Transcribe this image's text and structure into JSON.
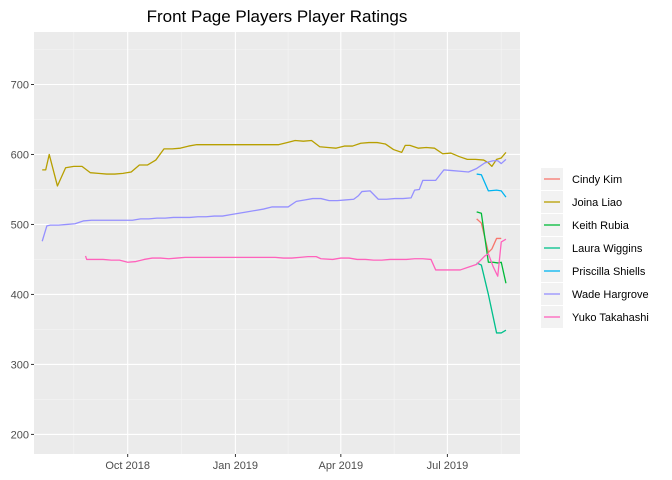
{
  "chart_data": {
    "type": "line",
    "title": "Front Page Players Player Ratings",
    "xlabel": "",
    "ylabel": "",
    "ylim": [
      172,
      775
    ],
    "xlim": [
      "2018-07-13",
      "2019-09-01"
    ],
    "y_ticks": [
      200,
      300,
      400,
      500,
      600,
      700
    ],
    "x_ticks": [
      {
        "date": "2018-10-01",
        "label": "Oct 2018"
      },
      {
        "date": "2019-01-01",
        "label": "Jan 2019"
      },
      {
        "date": "2019-04-01",
        "label": "Apr 2019"
      },
      {
        "date": "2019-07-01",
        "label": "Jul 2019"
      }
    ],
    "grid": true,
    "legend_position": "right",
    "colors": {
      "panel_bg": "#ebebeb",
      "grid_major": "#ffffff",
      "grid_minor": "#f5f5f5",
      "tick_text": "#4d4d4d"
    },
    "series": [
      {
        "name": "Cindy Kim",
        "color": "#F8766D",
        "points": [
          [
            "2019-07-26",
            508
          ],
          [
            "2019-07-30",
            502
          ],
          [
            "2019-08-05",
            460
          ],
          [
            "2019-08-08",
            465
          ],
          [
            "2019-08-12",
            480
          ],
          [
            "2019-08-16",
            480
          ]
        ]
      },
      {
        "name": "Joina Liao",
        "color": "#B79F00",
        "points": [
          [
            "2018-07-20",
            578
          ],
          [
            "2018-07-23",
            578
          ],
          [
            "2018-07-26",
            600
          ],
          [
            "2018-08-02",
            555
          ],
          [
            "2018-08-09",
            581
          ],
          [
            "2018-08-16",
            583
          ],
          [
            "2018-08-23",
            583
          ],
          [
            "2018-08-30",
            574
          ],
          [
            "2018-09-06",
            573
          ],
          [
            "2018-09-13",
            572
          ],
          [
            "2018-09-20",
            572
          ],
          [
            "2018-09-27",
            573
          ],
          [
            "2018-10-04",
            575
          ],
          [
            "2018-10-11",
            585
          ],
          [
            "2018-10-18",
            585
          ],
          [
            "2018-10-25",
            592
          ],
          [
            "2018-11-01",
            608
          ],
          [
            "2018-11-08",
            608
          ],
          [
            "2018-11-15",
            609
          ],
          [
            "2018-11-22",
            612
          ],
          [
            "2018-11-29",
            614
          ],
          [
            "2018-12-06",
            614
          ],
          [
            "2018-12-13",
            614
          ],
          [
            "2018-12-27",
            614
          ],
          [
            "2019-01-10",
            614
          ],
          [
            "2019-01-24",
            614
          ],
          [
            "2019-02-07",
            614
          ],
          [
            "2019-02-14",
            617
          ],
          [
            "2019-02-21",
            620
          ],
          [
            "2019-02-28",
            619
          ],
          [
            "2019-03-07",
            620
          ],
          [
            "2019-03-14",
            611
          ],
          [
            "2019-03-21",
            610
          ],
          [
            "2019-03-28",
            609
          ],
          [
            "2019-04-04",
            612
          ],
          [
            "2019-04-11",
            612
          ],
          [
            "2019-04-18",
            616
          ],
          [
            "2019-04-25",
            617
          ],
          [
            "2019-05-02",
            617
          ],
          [
            "2019-05-09",
            615
          ],
          [
            "2019-05-16",
            607
          ],
          [
            "2019-05-23",
            603
          ],
          [
            "2019-05-26",
            613
          ],
          [
            "2019-05-30",
            613
          ],
          [
            "2019-06-06",
            609
          ],
          [
            "2019-06-13",
            610
          ],
          [
            "2019-06-20",
            609
          ],
          [
            "2019-06-27",
            601
          ],
          [
            "2019-07-04",
            602
          ],
          [
            "2019-07-11",
            597
          ],
          [
            "2019-07-18",
            593
          ],
          [
            "2019-07-25",
            593
          ],
          [
            "2019-08-01",
            592
          ],
          [
            "2019-08-05",
            588
          ],
          [
            "2019-08-08",
            583
          ],
          [
            "2019-08-12",
            593
          ],
          [
            "2019-08-16",
            595
          ],
          [
            "2019-08-20",
            603
          ]
        ]
      },
      {
        "name": "Keith Rubia",
        "color": "#00BA38",
        "points": [
          [
            "2019-07-26",
            518
          ],
          [
            "2019-07-30",
            516
          ],
          [
            "2019-08-05",
            446
          ],
          [
            "2019-08-09",
            446
          ],
          [
            "2019-08-13",
            445
          ],
          [
            "2019-08-16",
            446
          ],
          [
            "2019-08-20",
            416
          ]
        ]
      },
      {
        "name": "Laura Wiggins",
        "color": "#00C08B",
        "points": [
          [
            "2019-07-26",
            445
          ],
          [
            "2019-07-30",
            442
          ],
          [
            "2019-08-05",
            400
          ],
          [
            "2019-08-12",
            345
          ],
          [
            "2019-08-16",
            345
          ],
          [
            "2019-08-20",
            349
          ]
        ]
      },
      {
        "name": "Priscilla Shiells",
        "color": "#00B4F0",
        "points": [
          [
            "2019-07-26",
            572
          ],
          [
            "2019-07-30",
            571
          ],
          [
            "2019-08-05",
            548
          ],
          [
            "2019-08-12",
            549
          ],
          [
            "2019-08-16",
            548
          ],
          [
            "2019-08-20",
            539
          ]
        ]
      },
      {
        "name": "Wade Hargrove",
        "color": "#9590FF",
        "points": [
          [
            "2018-07-20",
            476
          ],
          [
            "2018-07-24",
            498
          ],
          [
            "2018-07-27",
            499
          ],
          [
            "2018-08-03",
            499
          ],
          [
            "2018-08-10",
            500
          ],
          [
            "2018-08-17",
            501
          ],
          [
            "2018-08-24",
            505
          ],
          [
            "2018-08-31",
            506
          ],
          [
            "2018-09-07",
            506
          ],
          [
            "2018-09-14",
            506
          ],
          [
            "2018-09-21",
            506
          ],
          [
            "2018-09-28",
            506
          ],
          [
            "2018-10-05",
            506
          ],
          [
            "2018-10-12",
            508
          ],
          [
            "2018-10-19",
            508
          ],
          [
            "2018-10-26",
            509
          ],
          [
            "2018-11-02",
            509
          ],
          [
            "2018-11-09",
            510
          ],
          [
            "2018-11-16",
            510
          ],
          [
            "2018-11-23",
            510
          ],
          [
            "2018-11-30",
            511
          ],
          [
            "2018-12-07",
            511
          ],
          [
            "2018-12-14",
            512
          ],
          [
            "2018-12-21",
            512
          ],
          [
            "2018-12-28",
            514
          ],
          [
            "2019-01-04",
            516
          ],
          [
            "2019-01-11",
            518
          ],
          [
            "2019-01-18",
            520
          ],
          [
            "2019-01-25",
            522
          ],
          [
            "2019-02-01",
            525
          ],
          [
            "2019-02-08",
            525
          ],
          [
            "2019-02-15",
            525
          ],
          [
            "2019-02-22",
            533
          ],
          [
            "2019-03-01",
            535
          ],
          [
            "2019-03-08",
            537
          ],
          [
            "2019-03-15",
            537
          ],
          [
            "2019-03-22",
            534
          ],
          [
            "2019-03-29",
            534
          ],
          [
            "2019-04-05",
            535
          ],
          [
            "2019-04-12",
            536
          ],
          [
            "2019-04-16",
            541
          ],
          [
            "2019-04-19",
            547
          ],
          [
            "2019-04-26",
            548
          ],
          [
            "2019-05-03",
            536
          ],
          [
            "2019-05-10",
            536
          ],
          [
            "2019-05-17",
            537
          ],
          [
            "2019-05-24",
            537
          ],
          [
            "2019-05-31",
            538
          ],
          [
            "2019-06-03",
            549
          ],
          [
            "2019-06-07",
            550
          ],
          [
            "2019-06-10",
            563
          ],
          [
            "2019-06-14",
            563
          ],
          [
            "2019-06-21",
            563
          ],
          [
            "2019-06-28",
            578
          ],
          [
            "2019-07-05",
            577
          ],
          [
            "2019-07-12",
            576
          ],
          [
            "2019-07-19",
            575
          ],
          [
            "2019-07-26",
            580
          ],
          [
            "2019-08-02",
            588
          ],
          [
            "2019-08-09",
            591
          ],
          [
            "2019-08-13",
            591
          ],
          [
            "2019-08-16",
            587
          ],
          [
            "2019-08-20",
            593
          ]
        ]
      },
      {
        "name": "Yuko Takahashi",
        "color": "#FF62BC",
        "points": [
          [
            "2018-08-26",
            455
          ],
          [
            "2018-08-27",
            450
          ],
          [
            "2018-09-03",
            450
          ],
          [
            "2018-09-10",
            450
          ],
          [
            "2018-09-17",
            449
          ],
          [
            "2018-09-24",
            449
          ],
          [
            "2018-10-01",
            446
          ],
          [
            "2018-10-08",
            447
          ],
          [
            "2018-10-15",
            450
          ],
          [
            "2018-10-22",
            452
          ],
          [
            "2018-10-29",
            452
          ],
          [
            "2018-11-05",
            451
          ],
          [
            "2018-11-12",
            452
          ],
          [
            "2018-11-19",
            453
          ],
          [
            "2018-11-26",
            453
          ],
          [
            "2018-12-03",
            453
          ],
          [
            "2018-12-17",
            453
          ],
          [
            "2018-12-31",
            453
          ],
          [
            "2019-01-14",
            453
          ],
          [
            "2019-01-28",
            453
          ],
          [
            "2019-02-04",
            453
          ],
          [
            "2019-02-11",
            452
          ],
          [
            "2019-02-18",
            452
          ],
          [
            "2019-02-25",
            453
          ],
          [
            "2019-03-04",
            454
          ],
          [
            "2019-03-11",
            454
          ],
          [
            "2019-03-15",
            451
          ],
          [
            "2019-03-25",
            450
          ],
          [
            "2019-04-01",
            452
          ],
          [
            "2019-04-08",
            452
          ],
          [
            "2019-04-15",
            450
          ],
          [
            "2019-04-22",
            450
          ],
          [
            "2019-04-29",
            449
          ],
          [
            "2019-05-06",
            449
          ],
          [
            "2019-05-13",
            450
          ],
          [
            "2019-05-20",
            450
          ],
          [
            "2019-05-27",
            450
          ],
          [
            "2019-06-03",
            451
          ],
          [
            "2019-06-10",
            451
          ],
          [
            "2019-06-17",
            450
          ],
          [
            "2019-06-21",
            435
          ],
          [
            "2019-06-28",
            435
          ],
          [
            "2019-07-05",
            435
          ],
          [
            "2019-07-12",
            435
          ],
          [
            "2019-07-19",
            439
          ],
          [
            "2019-07-26",
            443
          ],
          [
            "2019-08-02",
            455
          ],
          [
            "2019-08-05",
            458
          ],
          [
            "2019-08-09",
            440
          ],
          [
            "2019-08-13",
            426
          ],
          [
            "2019-08-16",
            475
          ],
          [
            "2019-08-20",
            479
          ]
        ]
      }
    ]
  }
}
